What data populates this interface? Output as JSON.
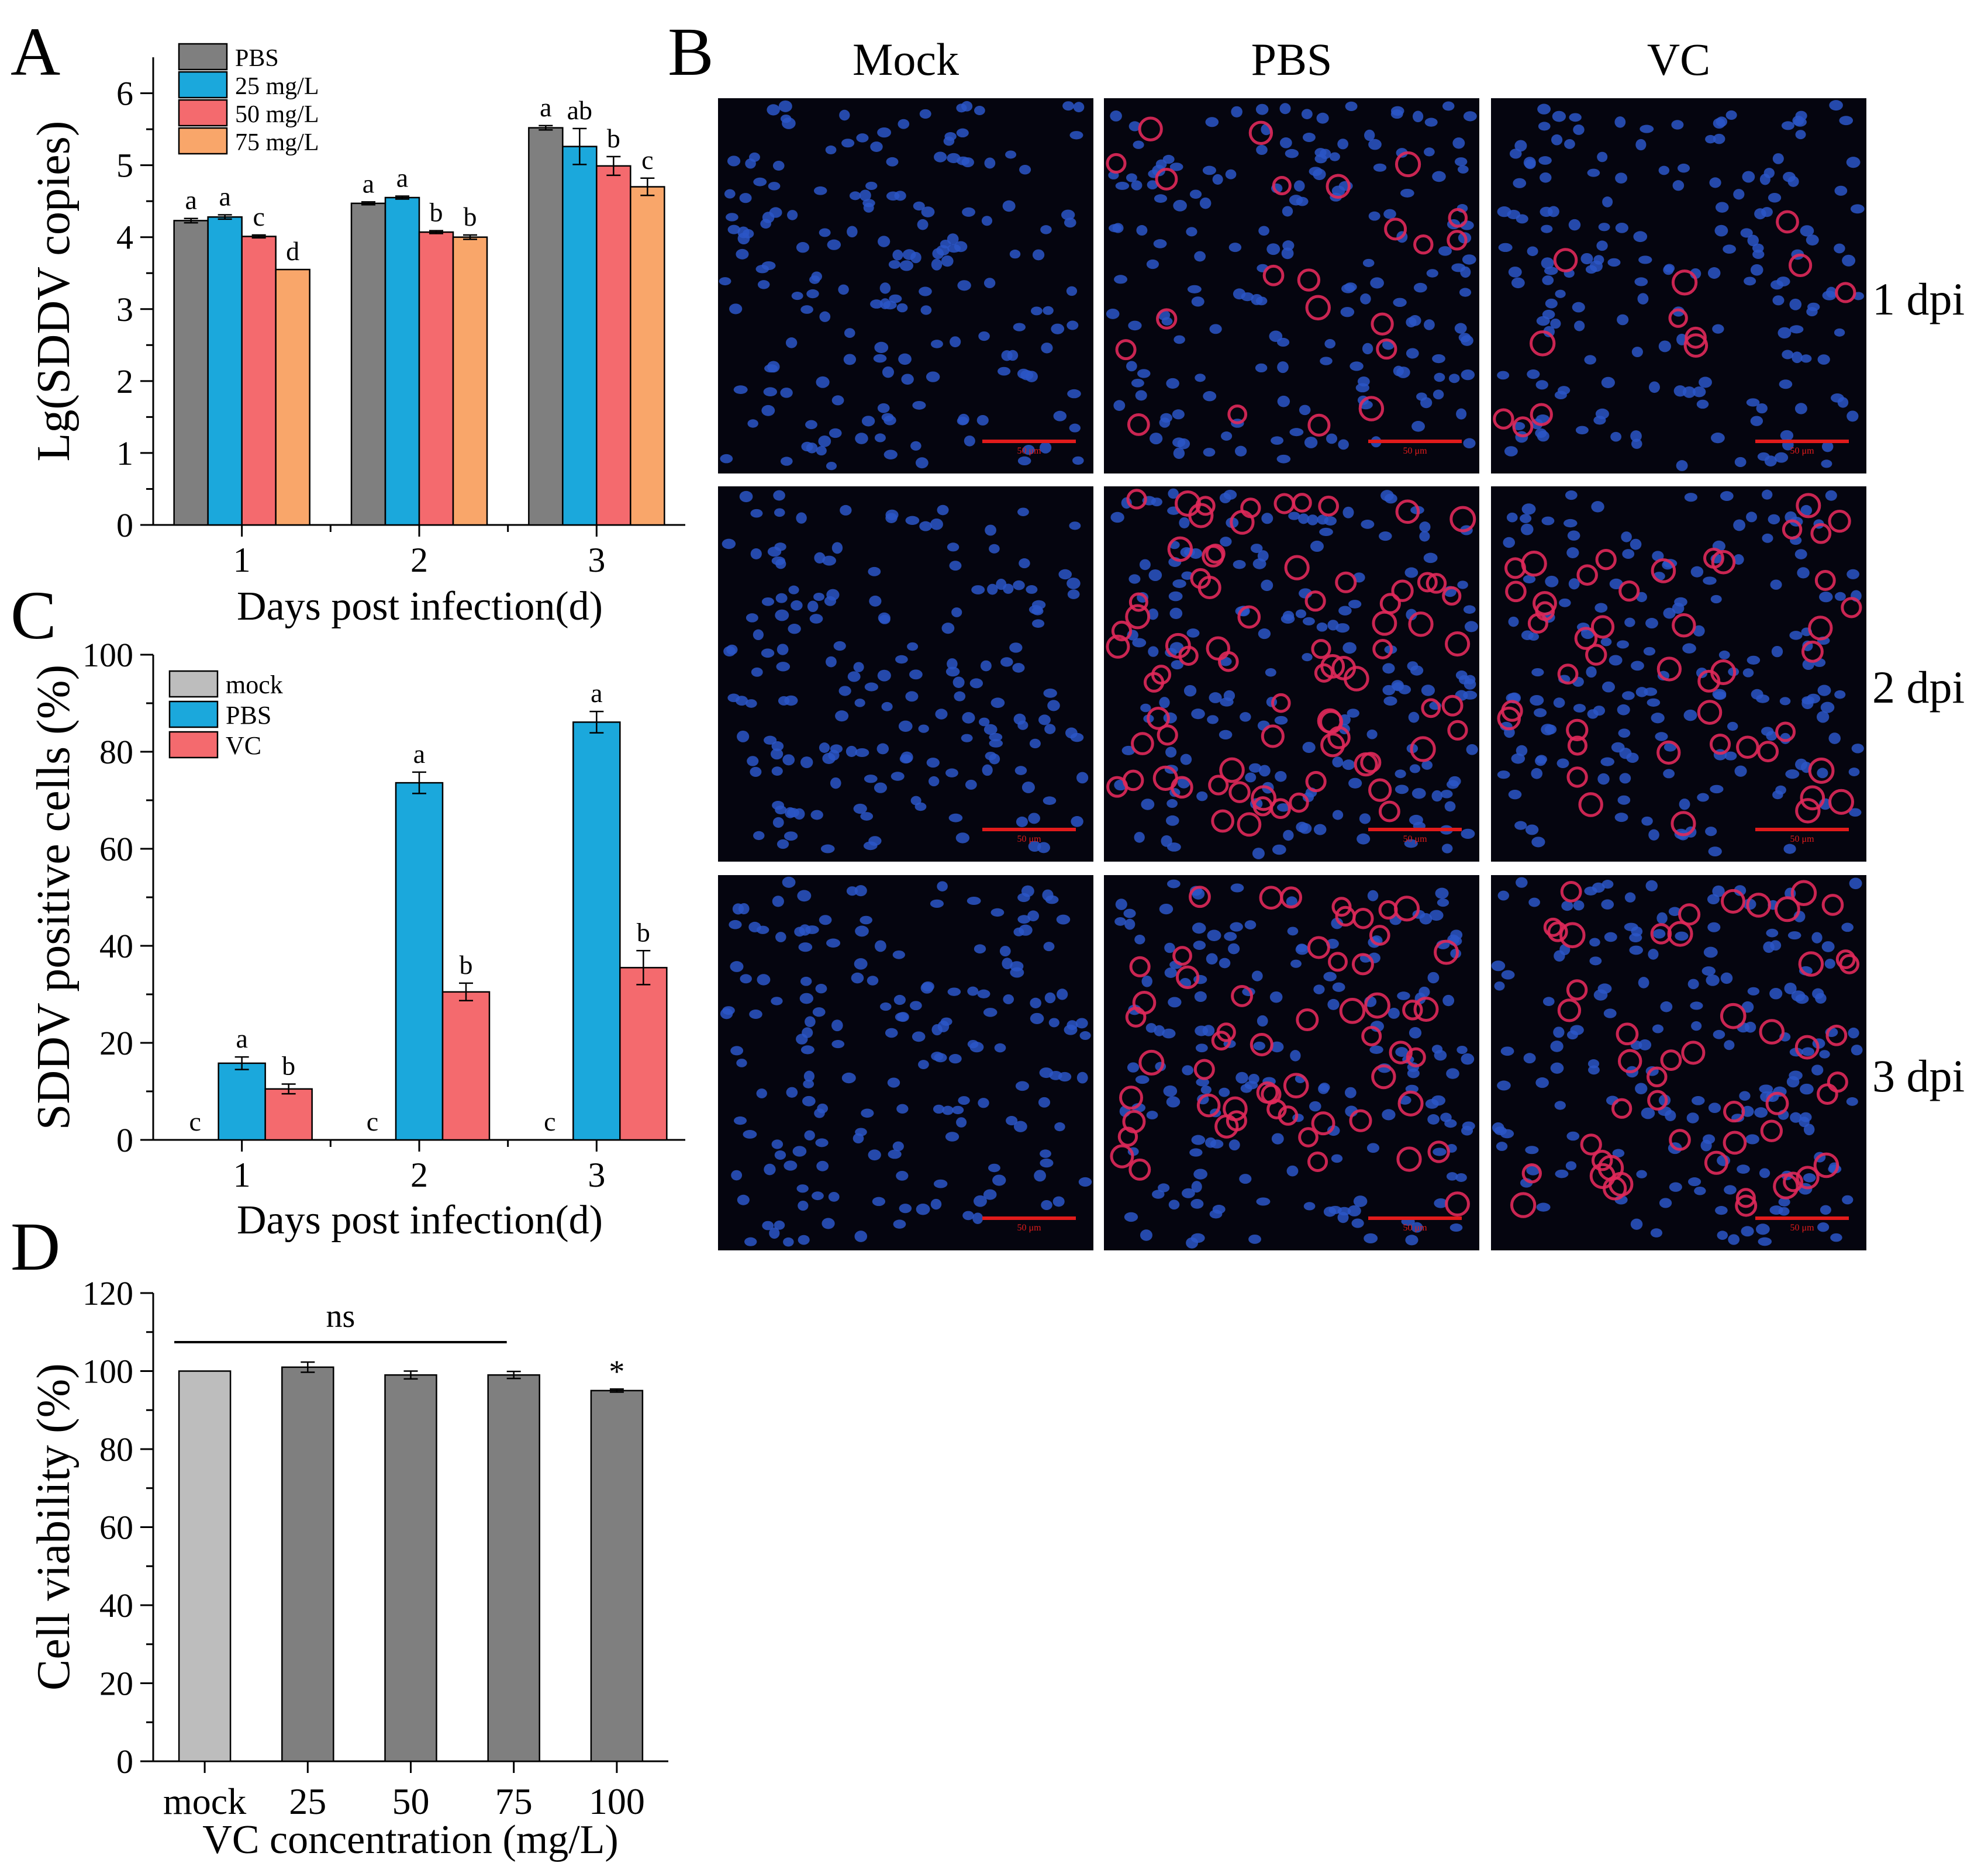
{
  "colors": {
    "pbs_a": "#7f7f7f",
    "c25": "#1ba8dc",
    "c50": "#f46a6e",
    "c75": "#f9a66a",
    "mock": "#bdbdbd",
    "pbs_d": "#7f7f7f",
    "vc": "#f46a6e",
    "micro_bg": "#05050f",
    "nucleus": "#2b56c7",
    "infected": "#e0295a",
    "scale": "#e11b1b"
  },
  "panels": {
    "A": {
      "letter": "A"
    },
    "B": {
      "letter": "B"
    },
    "C": {
      "letter": "C"
    },
    "D": {
      "letter": "D"
    }
  },
  "chart_data": [
    {
      "id": "A",
      "type": "bar",
      "categories": [
        "1",
        "2",
        "3"
      ],
      "xlabel": "Days post infection(d)",
      "ylabel": "Lg(SDDV copies)",
      "ylim": [
        0,
        6.5
      ],
      "yticks": [
        "0",
        "1",
        "2",
        "3",
        "4",
        "5",
        "6"
      ],
      "legend": "top-left",
      "series": [
        {
          "name": "PBS",
          "color_key": "pbs_a",
          "values": [
            4.23,
            4.47,
            5.52
          ],
          "errors": [
            0.03,
            0.02,
            0.03
          ],
          "letters": [
            "a",
            "a",
            "a"
          ]
        },
        {
          "name": "25 mg/L",
          "color_key": "c25",
          "values": [
            4.28,
            4.55,
            5.26
          ],
          "errors": [
            0.03,
            0.02,
            0.25
          ],
          "letters": [
            "a",
            "a",
            "ab"
          ]
        },
        {
          "name": "50 mg/L",
          "color_key": "c50",
          "values": [
            4.01,
            4.07,
            4.99
          ],
          "errors": [
            0.02,
            0.02,
            0.13
          ],
          "letters": [
            "c",
            "b",
            "b"
          ]
        },
        {
          "name": "75 mg/L",
          "color_key": "c75",
          "values": [
            3.55,
            4.0,
            4.7
          ],
          "errors": [
            0.0,
            0.03,
            0.12
          ],
          "letters": [
            "d",
            "b",
            "c"
          ]
        }
      ]
    },
    {
      "id": "C",
      "type": "bar",
      "categories": [
        "1",
        "2",
        "3"
      ],
      "xlabel": "Days post infection(d)",
      "ylabel": "SDDV positive cells (%)",
      "ylim": [
        0,
        100
      ],
      "yticks": [
        "0",
        "20",
        "40",
        "60",
        "80",
        "100"
      ],
      "legend": "top-left",
      "series": [
        {
          "name": "mock",
          "color_key": "mock",
          "values": [
            0,
            0,
            0
          ],
          "errors": [
            0,
            0,
            0
          ],
          "letters": [
            "c",
            "c",
            "c"
          ]
        },
        {
          "name": "PBS",
          "color_key": "c25",
          "values": [
            15.8,
            73.6,
            86.1
          ],
          "errors": [
            1.3,
            2.2,
            2.2
          ],
          "letters": [
            "a",
            "a",
            "a"
          ]
        },
        {
          "name": "VC",
          "color_key": "c50",
          "values": [
            10.5,
            30.5,
            35.5
          ],
          "errors": [
            1.0,
            1.8,
            3.5
          ],
          "letters": [
            "b",
            "b",
            "b"
          ]
        }
      ]
    },
    {
      "id": "D",
      "type": "bar",
      "categories": [
        "mock",
        "25",
        "50",
        "75",
        "100"
      ],
      "xlabel": "VC concentration (mg/L)",
      "ylabel": "Cell viability (%)",
      "ylim": [
        0,
        120
      ],
      "yticks": [
        "0",
        "20",
        "40",
        "60",
        "80",
        "100",
        "120"
      ],
      "values": [
        100,
        101,
        99,
        99,
        95
      ],
      "errors": [
        0,
        1.3,
        1.0,
        0.9,
        0.4
      ],
      "color_keys": [
        "mock",
        "pbs_d",
        "pbs_d",
        "pbs_d",
        "pbs_d"
      ],
      "annotations": [
        "",
        "",
        "",
        "",
        "*"
      ],
      "ns_label": "ns"
    }
  ],
  "micrographs": {
    "columns": [
      "Mock",
      "PBS",
      "VC"
    ],
    "rows": [
      "1 dpi",
      "2 dpi",
      "3 dpi"
    ],
    "infection_density": [
      [
        0,
        22,
        12
      ],
      [
        0,
        75,
        45
      ],
      [
        0,
        55,
        50
      ]
    ],
    "scale_labels": [
      [
        "50 μm",
        "50 μm",
        "50 μm"
      ],
      [
        "50 μm",
        "50 μm",
        "50 μm"
      ],
      [
        "50 μm",
        "50 μm",
        "50 μm"
      ]
    ]
  }
}
